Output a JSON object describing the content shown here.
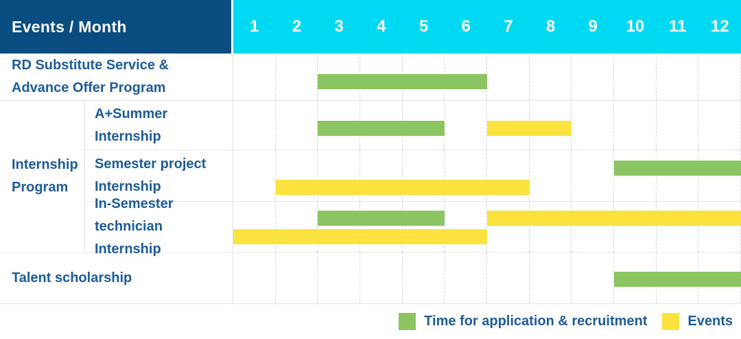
{
  "header": {
    "label": "Events / Month",
    "months": [
      "1",
      "2",
      "3",
      "4",
      "5",
      "6",
      "7",
      "8",
      "9",
      "10",
      "11",
      "12"
    ]
  },
  "colors": {
    "header_navy": "#0A4D80",
    "header_cyan": "#00D9F2",
    "bar_green": "#8BC562",
    "bar_yellow": "#FCE23E",
    "label_blue": "#1D5C99",
    "month_grid_line": "#D9D9D9",
    "row_line": "#E6E6E6"
  },
  "legend": {
    "items": [
      {
        "label": "Time for application & recruitment",
        "color": "#8BC562"
      },
      {
        "label": "Events",
        "color": "#FCE23E"
      }
    ]
  },
  "chart_data": {
    "type": "bar",
    "subtype": "gantt-schedule",
    "title": "Events / Month",
    "x_axis": {
      "label": "Month",
      "ticks": [
        1,
        2,
        3,
        4,
        5,
        6,
        7,
        8,
        9,
        10,
        11,
        12
      ],
      "range": [
        1,
        12
      ]
    },
    "series_names": [
      "Time for application & recruitment",
      "Events"
    ],
    "rows": [
      {
        "id": "rd",
        "group": null,
        "label": "RD Substitute Service & Advance Offer Program",
        "bars": [
          {
            "series": "Time for application & recruitment",
            "start_month": 3,
            "end_month": 6
          }
        ]
      },
      {
        "id": "aplus",
        "group": "Internship Program",
        "label": "A+Summer Internship",
        "bars": [
          {
            "series": "Time for application & recruitment",
            "start_month": 3,
            "end_month": 5
          },
          {
            "series": "Events",
            "start_month": 7,
            "end_month": 8
          }
        ]
      },
      {
        "id": "semester",
        "group": "Internship Program",
        "label": "Semester project Internship",
        "bars": [
          {
            "series": "Time for application & recruitment",
            "start_month": 10,
            "end_month": 12
          },
          {
            "series": "Events",
            "start_month": 2,
            "end_month": 7
          }
        ]
      },
      {
        "id": "insemester",
        "group": "Internship Program",
        "label": "In-Semester technician Internship",
        "bars": [
          {
            "series": "Time for application & recruitment",
            "start_month": 3,
            "end_month": 5
          },
          {
            "series": "Events",
            "start_month": 7,
            "end_month": 12
          },
          {
            "series": "Events",
            "start_month": 1,
            "end_month": 6
          }
        ]
      },
      {
        "id": "talent",
        "group": null,
        "label": "Talent scholarship",
        "bars": [
          {
            "series": "Time for application & recruitment",
            "start_month": 10,
            "end_month": 12
          }
        ]
      }
    ]
  }
}
